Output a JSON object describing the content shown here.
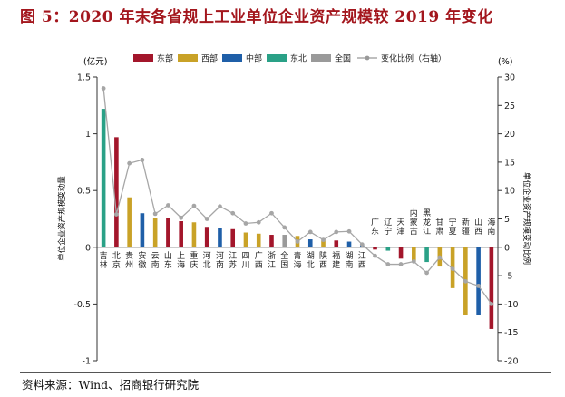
{
  "page": {
    "title": "图 5：2020 年末各省规上工业单位企业资产规模较 2019 年变化",
    "source": "资料来源：Wind、招商银行研究院"
  },
  "chart_data": {
    "type": "bar",
    "title": "",
    "y_left": {
      "unit": "(亿元)",
      "label": "单位企业资产规模变动量",
      "lim": [
        -1,
        1.5
      ],
      "ticks": [
        -1,
        -0.5,
        0,
        0.5,
        1,
        1.5
      ],
      "tick_labels": [
        "-1",
        "-0.5",
        "0",
        "0.5",
        "1",
        "1.5"
      ]
    },
    "y_right": {
      "unit": "(%)",
      "label": "单位企业资产规模变动比例",
      "lim": [
        -20,
        30
      ],
      "ticks": [
        -20,
        -15,
        -10,
        -5,
        0,
        5,
        10,
        15,
        20,
        25,
        30
      ],
      "tick_labels": [
        "-20",
        "-15",
        "-10",
        "-5",
        "0",
        "5",
        "10",
        "15",
        "20",
        "25",
        "30"
      ]
    },
    "legend": {
      "placement": "top",
      "entries": [
        {
          "name": "东部",
          "color": "#a3162b",
          "kind": "bar"
        },
        {
          "name": "西部",
          "color": "#c9a227",
          "kind": "bar"
        },
        {
          "name": "中部",
          "color": "#1f5fa8",
          "kind": "bar"
        },
        {
          "name": "东北",
          "color": "#2aa187",
          "kind": "bar"
        },
        {
          "name": "全国",
          "color": "#9a9a9a",
          "kind": "bar"
        },
        {
          "name": "变化比例（右轴）",
          "color": "#999999",
          "kind": "line"
        }
      ]
    },
    "region_colors": {
      "东部": "#a3162b",
      "西部": "#c9a227",
      "中部": "#1f5fa8",
      "东北": "#2aa187",
      "全国": "#9a9a9a"
    },
    "categories": [
      "吉林",
      "北京",
      "贵州",
      "安徽",
      "云南",
      "山东",
      "上海",
      "重庆",
      "河北",
      "河南",
      "江苏",
      "四川",
      "广西",
      "浙江",
      "全国",
      "青海",
      "湖北",
      "陕西",
      "福建",
      "湖南",
      "江西",
      "广东",
      "辽宁",
      "天津",
      "内蒙古",
      "黑龙江",
      "甘肃",
      "宁夏",
      "新疆",
      "山西",
      "海南"
    ],
    "regions": [
      "东北",
      "东部",
      "西部",
      "中部",
      "西部",
      "东部",
      "东部",
      "西部",
      "东部",
      "中部",
      "东部",
      "西部",
      "西部",
      "东部",
      "全国",
      "西部",
      "中部",
      "西部",
      "东部",
      "中部",
      "中部",
      "东部",
      "东北",
      "东部",
      "西部",
      "东北",
      "西部",
      "西部",
      "西部",
      "中部",
      "东部"
    ],
    "series": [
      {
        "name": "",
        "values": [
          1.22,
          0.97,
          0.44,
          0.3,
          0.26,
          0.26,
          0.23,
          0.22,
          0.18,
          0.17,
          0.16,
          0.13,
          0.12,
          0.11,
          0.11,
          0.1,
          0.07,
          0.06,
          0.06,
          0.05,
          0.02,
          -0.02,
          -0.03,
          -0.1,
          -0.12,
          -0.13,
          -0.17,
          -0.36,
          -0.6,
          -0.6,
          -0.72
        ]
      },
      {
        "name": "变化比例（右轴）",
        "values": [
          28.0,
          5.8,
          14.8,
          15.4,
          5.9,
          7.4,
          5.2,
          7.3,
          5.0,
          7.2,
          6.0,
          4.2,
          4.4,
          6.0,
          3.5,
          1.0,
          2.7,
          1.3,
          2.7,
          2.8,
          0.5,
          -1.5,
          -3.0,
          -3.0,
          -2.5,
          -4.5,
          -1.8,
          -3.8,
          -6.0,
          -6.8,
          -10.0
        ]
      }
    ]
  }
}
